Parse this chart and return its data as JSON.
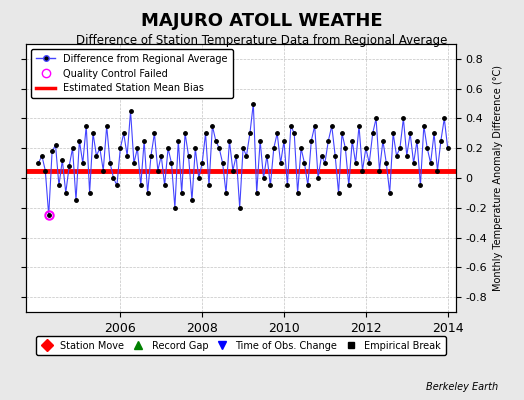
{
  "title": "MAJURO ATOLL WEATHE",
  "subtitle": "Difference of Station Temperature Data from Regional Average",
  "ylabel": "Monthly Temperature Anomaly Difference (°C)",
  "xlabel_years": [
    2006,
    2008,
    2010,
    2012,
    2014
  ],
  "credit": "Berkeley Earth",
  "ylim": [
    -0.9,
    0.9
  ],
  "yticks": [
    -0.8,
    -0.6,
    -0.4,
    -0.2,
    0,
    0.2,
    0.4,
    0.6,
    0.8
  ],
  "bias_value": 0.05,
  "line_color": "#4444ff",
  "marker_color": "#000000",
  "bias_color": "#ff0000",
  "qc_fail_x": [
    2004.25
  ],
  "qc_fail_y": [
    -0.25
  ],
  "background_color": "#e8e8e8",
  "plot_bg_color": "#ffffff",
  "time_series": {
    "x": [
      2004.0,
      2004.083,
      2004.167,
      2004.25,
      2004.333,
      2004.417,
      2004.5,
      2004.583,
      2004.667,
      2004.75,
      2004.833,
      2004.917,
      2005.0,
      2005.083,
      2005.167,
      2005.25,
      2005.333,
      2005.417,
      2005.5,
      2005.583,
      2005.667,
      2005.75,
      2005.833,
      2005.917,
      2006.0,
      2006.083,
      2006.167,
      2006.25,
      2006.333,
      2006.417,
      2006.5,
      2006.583,
      2006.667,
      2006.75,
      2006.833,
      2006.917,
      2007.0,
      2007.083,
      2007.167,
      2007.25,
      2007.333,
      2007.417,
      2007.5,
      2007.583,
      2007.667,
      2007.75,
      2007.833,
      2007.917,
      2008.0,
      2008.083,
      2008.167,
      2008.25,
      2008.333,
      2008.417,
      2008.5,
      2008.583,
      2008.667,
      2008.75,
      2008.833,
      2008.917,
      2009.0,
      2009.083,
      2009.167,
      2009.25,
      2009.333,
      2009.417,
      2009.5,
      2009.583,
      2009.667,
      2009.75,
      2009.833,
      2009.917,
      2010.0,
      2010.083,
      2010.167,
      2010.25,
      2010.333,
      2010.417,
      2010.5,
      2010.583,
      2010.667,
      2010.75,
      2010.833,
      2010.917,
      2011.0,
      2011.083,
      2011.167,
      2011.25,
      2011.333,
      2011.417,
      2011.5,
      2011.583,
      2011.667,
      2011.75,
      2011.833,
      2011.917,
      2012.0,
      2012.083,
      2012.167,
      2012.25,
      2012.333,
      2012.417,
      2012.5,
      2012.583,
      2012.667,
      2012.75,
      2012.833,
      2012.917,
      2013.0,
      2013.083,
      2013.167,
      2013.25,
      2013.333,
      2013.417,
      2013.5,
      2013.583,
      2013.667,
      2013.75,
      2013.833,
      2013.917,
      2014.0
    ],
    "y": [
      0.1,
      0.15,
      0.05,
      -0.25,
      0.18,
      0.22,
      -0.05,
      0.12,
      -0.1,
      0.08,
      0.2,
      -0.15,
      0.25,
      0.1,
      0.35,
      -0.1,
      0.3,
      0.15,
      0.2,
      0.05,
      0.35,
      0.1,
      0.0,
      -0.05,
      0.2,
      0.3,
      0.15,
      0.45,
      0.1,
      0.2,
      -0.05,
      0.25,
      -0.1,
      0.15,
      0.3,
      0.05,
      0.15,
      -0.05,
      0.2,
      0.1,
      -0.2,
      0.25,
      -0.1,
      0.3,
      0.15,
      -0.15,
      0.2,
      0.0,
      0.1,
      0.3,
      -0.05,
      0.35,
      0.25,
      0.2,
      0.1,
      -0.1,
      0.25,
      0.05,
      0.15,
      -0.2,
      0.2,
      0.15,
      0.3,
      0.5,
      -0.1,
      0.25,
      0.0,
      0.15,
      -0.05,
      0.2,
      0.3,
      0.1,
      0.25,
      -0.05,
      0.35,
      0.3,
      -0.1,
      0.2,
      0.1,
      -0.05,
      0.25,
      0.35,
      0.0,
      0.15,
      0.1,
      0.25,
      0.35,
      0.15,
      -0.1,
      0.3,
      0.2,
      -0.05,
      0.25,
      0.1,
      0.35,
      0.05,
      0.2,
      0.1,
      0.3,
      0.4,
      0.05,
      0.25,
      0.1,
      -0.1,
      0.3,
      0.15,
      0.2,
      0.4,
      0.15,
      0.3,
      0.1,
      0.25,
      -0.05,
      0.35,
      0.2,
      0.1,
      0.3,
      0.05,
      0.25,
      0.4,
      0.2
    ]
  }
}
